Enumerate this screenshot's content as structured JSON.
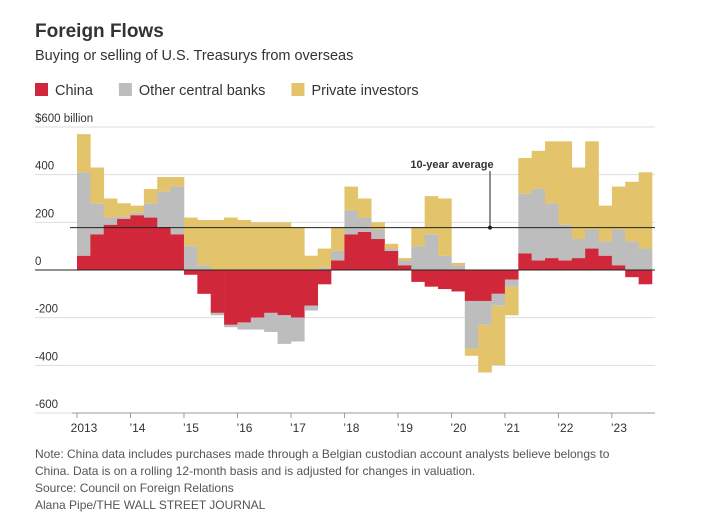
{
  "chart_data": {
    "type": "stacked-bar",
    "title": "Foreign Flows",
    "subtitle": "Buying or selling of U.S. Treasurys from overseas",
    "categories": [
      "2013",
      null,
      null,
      null,
      "’14",
      null,
      null,
      null,
      "’15",
      null,
      null,
      null,
      "’16",
      null,
      null,
      null,
      "’17",
      null,
      null,
      null,
      "’18",
      null,
      null,
      null,
      "’19",
      null,
      null,
      null,
      "’20",
      null,
      null,
      null,
      "’21",
      null,
      null,
      null,
      "’22",
      null,
      null,
      null,
      "’23",
      null,
      null
    ],
    "series": [
      {
        "name": "China",
        "color": "#d0283a",
        "values": [
          60,
          150,
          190,
          215,
          230,
          220,
          180,
          150,
          -20,
          -100,
          -180,
          -230,
          -220,
          -200,
          -180,
          -190,
          -200,
          -150,
          -60,
          40,
          150,
          160,
          130,
          80,
          20,
          -50,
          -70,
          -80,
          -90,
          -130,
          -130,
          -100,
          -40,
          70,
          40,
          50,
          40,
          50,
          90,
          60,
          20,
          -30,
          -60
        ]
      },
      {
        "name": "Other central banks",
        "color": "#bdbdbd",
        "values": [
          350,
          130,
          30,
          10,
          10,
          60,
          150,
          200,
          100,
          20,
          -10,
          -10,
          -30,
          -50,
          -80,
          -120,
          -100,
          -20,
          10,
          40,
          100,
          60,
          40,
          10,
          20,
          100,
          150,
          60,
          20,
          -200,
          -100,
          -50,
          -30,
          250,
          300,
          230,
          150,
          80,
          80,
          60,
          150,
          120,
          90
        ]
      },
      {
        "name": "Private investors",
        "color": "#e3c46a",
        "values": [
          160,
          150,
          80,
          55,
          30,
          60,
          60,
          40,
          120,
          190,
          210,
          220,
          210,
          200,
          200,
          200,
          180,
          60,
          80,
          100,
          100,
          80,
          30,
          20,
          10,
          80,
          160,
          240,
          10,
          -30,
          -200,
          -250,
          -120,
          150,
          160,
          260,
          350,
          300,
          370,
          150,
          180,
          250,
          320
        ]
      }
    ],
    "ylim": [
      -600,
      600
    ],
    "yticks": [
      {
        "value": 600,
        "label": "$600 billion"
      },
      400,
      200,
      0,
      -200,
      -400,
      -600
    ],
    "grid": true,
    "average": 178,
    "average_label": "10-year average",
    "note": "Note: China data includes purchases made through a Belgian custodian account analysts believe belongs to China. Data is on a rolling 12-month basis and is adjusted for changes in valuation.",
    "source": "Source: Council on Foreign Relations",
    "credit": "Alana Pipe/THE WALL STREET JOURNAL"
  }
}
